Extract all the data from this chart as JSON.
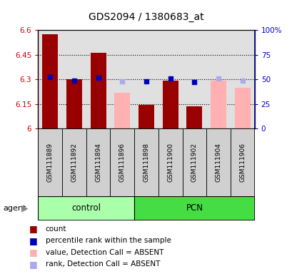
{
  "title": "GDS2094 / 1380683_at",
  "samples": [
    "GSM111889",
    "GSM111892",
    "GSM111894",
    "GSM111896",
    "GSM111898",
    "GSM111900",
    "GSM111902",
    "GSM111904",
    "GSM111906"
  ],
  "ylim_left": [
    6.0,
    6.6
  ],
  "ylim_right": [
    0,
    100
  ],
  "yticks_left": [
    6.0,
    6.15,
    6.3,
    6.45,
    6.6
  ],
  "yticks_right": [
    0,
    25,
    50,
    75,
    100
  ],
  "ytick_labels_left": [
    "6",
    "6.15",
    "6.3",
    "6.45",
    "6.6"
  ],
  "ytick_labels_right": [
    "0",
    "25",
    "50",
    "75",
    "100%"
  ],
  "hlines": [
    6.15,
    6.3,
    6.45
  ],
  "red_bars": [
    6.575,
    6.3,
    6.46,
    null,
    6.145,
    6.295,
    6.135,
    null,
    null
  ],
  "pink_bars": [
    null,
    null,
    null,
    6.22,
    null,
    null,
    null,
    6.295,
    6.25
  ],
  "blue_squares": [
    6.315,
    6.295,
    6.31,
    null,
    6.29,
    6.305,
    6.285,
    null,
    null
  ],
  "light_blue_squares": [
    null,
    null,
    null,
    6.29,
    null,
    null,
    null,
    6.305,
    6.295
  ],
  "bar_width": 0.65,
  "plot_bg_color": "#e0e0e0",
  "sample_box_color": "#d0d0d0",
  "control_color": "#aaffaa",
  "pcn_color": "#44dd44",
  "left_axis_color": "#cc0000",
  "right_axis_color": "#0000cc",
  "red_bar_color": "#990000",
  "pink_bar_color": "#ffb0b0",
  "blue_sq_color": "#0000bb",
  "light_blue_sq_color": "#aaaaee",
  "legend_items": [
    "count",
    "percentile rank within the sample",
    "value, Detection Call = ABSENT",
    "rank, Detection Call = ABSENT"
  ],
  "control_range": [
    0,
    3
  ],
  "pcn_range": [
    4,
    8
  ]
}
